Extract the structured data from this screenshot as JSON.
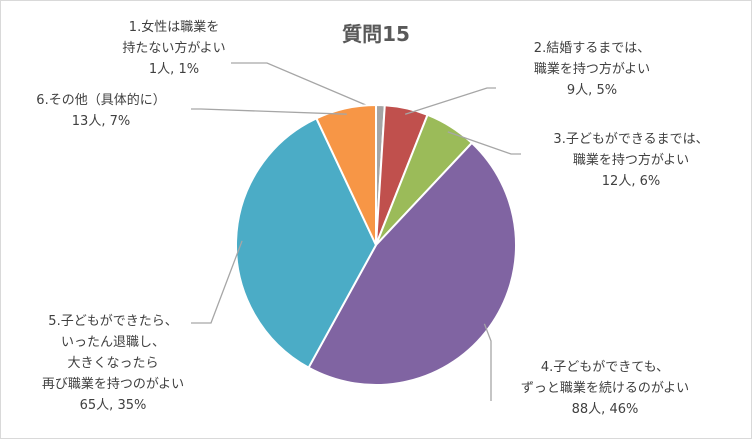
{
  "chart_data": {
    "type": "pie",
    "title": "質問15",
    "categories": [
      "1.女性は職業を持たない方がよい",
      "2.結婚するまでは、職業を持つ方がよい",
      "3.子どもができるまでは、職業を持つ方がよい",
      "4.子どもができても、ずっと職業を続けるのがよい",
      "5.子どもができたら、いったん退職し、大きくなったら再び職業を持つのがよい",
      "6.その他（具体的に）"
    ],
    "counts": [
      1,
      9,
      12,
      88,
      65,
      13
    ],
    "values": [
      1,
      5,
      6,
      46,
      35,
      7
    ],
    "colors": [
      "#a5a5a5",
      "#c0504d",
      "#9bbb59",
      "#8064a2",
      "#4bacc6",
      "#f79646"
    ],
    "legend": "none",
    "data_labels": [
      {
        "lines": [
          "1.女性は職業を",
          "持たない方がよい",
          "1人, 1%"
        ]
      },
      {
        "lines": [
          "2.結婚するまでは、",
          "職業を持つ方がよい",
          "9人, 5%"
        ]
      },
      {
        "lines": [
          "3.子どもができるまでは、",
          "職業を持つ方がよい",
          "12人, 6%"
        ]
      },
      {
        "lines": [
          "4.子どもができても、",
          "ずっと職業を続けるのがよい",
          "88人, 46%"
        ]
      },
      {
        "lines": [
          "5.子どもができたら、",
          "いったん退職し、",
          "大きくなったら",
          "再び職業を持つのがよい",
          "65人, 35%"
        ]
      },
      {
        "lines": [
          "6.その他（具体的に）",
          "13人, 7%"
        ]
      }
    ]
  }
}
